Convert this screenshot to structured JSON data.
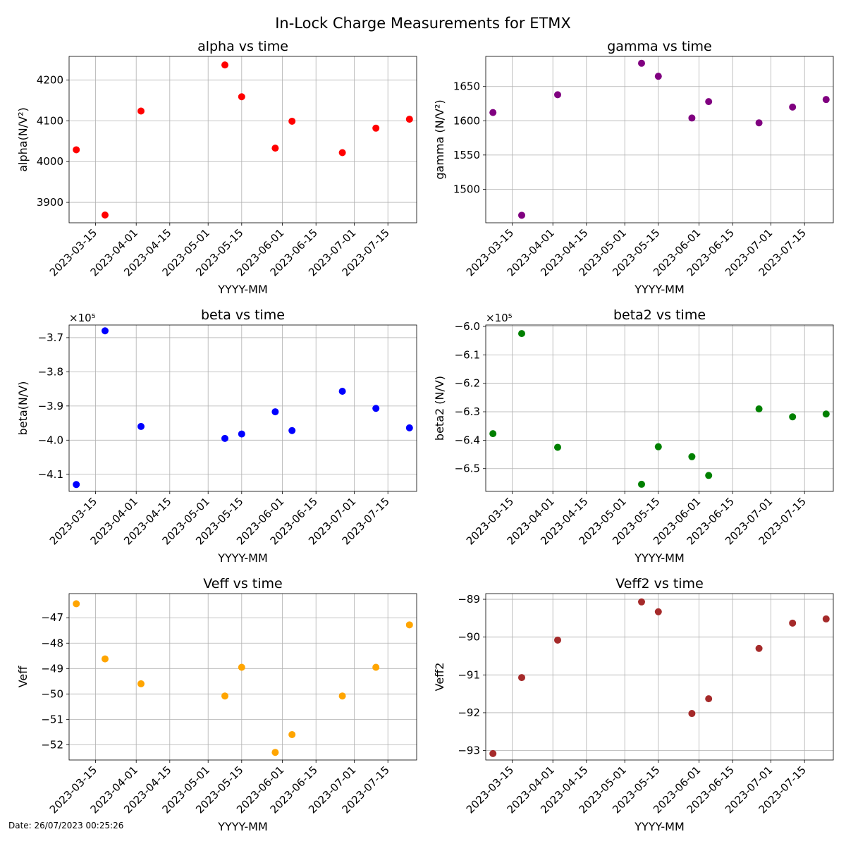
{
  "figure": {
    "title": "In-Lock Charge Measurements for ETMX",
    "footer": "Date: 26/07/2023 00:25:26"
  },
  "chart_data": [
    {
      "type": "scatter",
      "title": "alpha vs time",
      "xlabel": "YYYY-MM",
      "ylabel": "alpha(N/V²)",
      "color": "#ff0000",
      "grid": true,
      "x_ticks": [
        "2023-03-15",
        "2023-04-01",
        "2023-04-15",
        "2023-05-01",
        "2023-05-15",
        "2023-06-01",
        "2023-06-15",
        "2023-07-01",
        "2023-07-15"
      ],
      "xlim": [
        "2023-03-04",
        "2023-07-27"
      ],
      "ylim": [
        3850,
        4258
      ],
      "y_ticks": [
        3900,
        4000,
        4100,
        4200
      ],
      "y_tick_labels": [
        "3900",
        "4000",
        "4100",
        "4200"
      ],
      "x": [
        "2023-03-07",
        "2023-03-19",
        "2023-04-03",
        "2023-05-08",
        "2023-05-15",
        "2023-05-29",
        "2023-06-05",
        "2023-06-26",
        "2023-07-10",
        "2023-07-24"
      ],
      "y": [
        4029,
        3869,
        4124,
        4237,
        4159,
        4033,
        4099,
        4022,
        4082,
        4104
      ]
    },
    {
      "type": "scatter",
      "title": "gamma vs time",
      "xlabel": "YYYY-MM",
      "ylabel": "gamma (N/V²)",
      "color": "#800080",
      "grid": true,
      "x_ticks": [
        "2023-03-15",
        "2023-04-01",
        "2023-04-15",
        "2023-05-01",
        "2023-05-15",
        "2023-06-01",
        "2023-06-15",
        "2023-07-01",
        "2023-07-15"
      ],
      "xlim": [
        "2023-03-04",
        "2023-07-27"
      ],
      "ylim": [
        1451,
        1694
      ],
      "y_ticks": [
        1500,
        1550,
        1600,
        1650
      ],
      "y_tick_labels": [
        "1500",
        "1550",
        "1600",
        "1650"
      ],
      "x": [
        "2023-03-07",
        "2023-03-19",
        "2023-04-03",
        "2023-05-08",
        "2023-05-15",
        "2023-05-29",
        "2023-06-05",
        "2023-06-26",
        "2023-07-10",
        "2023-07-24"
      ],
      "y": [
        1612,
        1462,
        1638,
        1684,
        1665,
        1604,
        1628,
        1597,
        1620,
        1631
      ]
    },
    {
      "type": "scatter",
      "title": "beta vs time",
      "xlabel": "YYYY-MM",
      "ylabel": "beta(N/V)",
      "offset_label": "×10⁵",
      "color": "#0000ff",
      "grid": true,
      "x_ticks": [
        "2023-03-15",
        "2023-04-01",
        "2023-04-15",
        "2023-05-01",
        "2023-05-15",
        "2023-06-01",
        "2023-06-15",
        "2023-07-01",
        "2023-07-15"
      ],
      "xlim": [
        "2023-03-04",
        "2023-07-27"
      ],
      "ylim": [
        -4.15,
        -3.663
      ],
      "y_ticks": [
        -4.1,
        -4.0,
        -3.9,
        -3.8,
        -3.7
      ],
      "y_tick_labels": [
        "−4.1",
        "−4.0",
        "−3.9",
        "−3.8",
        "−3.7"
      ],
      "x": [
        "2023-03-07",
        "2023-03-19",
        "2023-04-03",
        "2023-05-08",
        "2023-05-15",
        "2023-05-29",
        "2023-06-05",
        "2023-06-26",
        "2023-07-10",
        "2023-07-24"
      ],
      "y": [
        -4.13,
        -3.68,
        -3.96,
        -3.995,
        -3.982,
        -3.917,
        -3.972,
        -3.857,
        -3.907,
        -3.964
      ]
    },
    {
      "type": "scatter",
      "title": "beta2 vs time",
      "xlabel": "YYYY-MM",
      "ylabel": "beta2 (N/V)",
      "offset_label": "×10⁵",
      "color": "#008000",
      "grid": true,
      "x_ticks": [
        "2023-03-15",
        "2023-04-01",
        "2023-04-15",
        "2023-05-01",
        "2023-05-15",
        "2023-06-01",
        "2023-06-15",
        "2023-07-01",
        "2023-07-15"
      ],
      "xlim": [
        "2023-03-04",
        "2023-07-27"
      ],
      "ylim": [
        -6.58,
        -5.995
      ],
      "y_ticks": [
        -6.5,
        -6.4,
        -6.3,
        -6.2,
        -6.1,
        -6.0
      ],
      "y_tick_labels": [
        "−6.5",
        "−6.4",
        "−6.3",
        "−6.2",
        "−6.1",
        "−6.0"
      ],
      "x": [
        "2023-03-07",
        "2023-03-19",
        "2023-04-03",
        "2023-05-08",
        "2023-05-15",
        "2023-05-29",
        "2023-06-05",
        "2023-06-26",
        "2023-07-10",
        "2023-07-24"
      ],
      "y": [
        -6.377,
        -6.025,
        -6.425,
        -6.555,
        -6.423,
        -6.458,
        -6.524,
        -6.29,
        -6.318,
        -6.308
      ]
    },
    {
      "type": "scatter",
      "title": "Veff vs time",
      "xlabel": "YYYY-MM",
      "ylabel": "Veff",
      "color": "#ffa500",
      "grid": true,
      "x_ticks": [
        "2023-03-15",
        "2023-04-01",
        "2023-04-15",
        "2023-05-01",
        "2023-05-15",
        "2023-06-01",
        "2023-06-15",
        "2023-07-01",
        "2023-07-15"
      ],
      "xlim": [
        "2023-03-04",
        "2023-07-27"
      ],
      "ylim": [
        -52.6,
        -46.05
      ],
      "y_ticks": [
        -52,
        -51,
        -50,
        -49,
        -48,
        -47
      ],
      "y_tick_labels": [
        "−52",
        "−51",
        "−50",
        "−49",
        "−48",
        "−47"
      ],
      "x": [
        "2023-03-07",
        "2023-03-19",
        "2023-04-03",
        "2023-05-08",
        "2023-05-15",
        "2023-05-29",
        "2023-06-05",
        "2023-06-26",
        "2023-07-10",
        "2023-07-24"
      ],
      "y": [
        -46.45,
        -48.62,
        -49.6,
        -50.08,
        -48.95,
        -52.3,
        -51.6,
        -50.08,
        -48.95,
        -47.28
      ]
    },
    {
      "type": "scatter",
      "title": "Veff2 vs time",
      "xlabel": "YYYY-MM",
      "ylabel": "Veff2",
      "color": "#a52a2a",
      "grid": true,
      "x_ticks": [
        "2023-03-15",
        "2023-04-01",
        "2023-04-15",
        "2023-05-01",
        "2023-05-15",
        "2023-06-01",
        "2023-06-15",
        "2023-07-01",
        "2023-07-15"
      ],
      "xlim": [
        "2023-03-04",
        "2023-07-27"
      ],
      "ylim": [
        -93.25,
        -88.85
      ],
      "y_ticks": [
        -93,
        -92,
        -91,
        -90,
        -89
      ],
      "y_tick_labels": [
        "−93",
        "−92",
        "−91",
        "−90",
        "−89"
      ],
      "x": [
        "2023-03-07",
        "2023-03-19",
        "2023-04-03",
        "2023-05-08",
        "2023-05-15",
        "2023-05-29",
        "2023-06-05",
        "2023-06-26",
        "2023-07-10",
        "2023-07-24"
      ],
      "y": [
        -93.08,
        -91.07,
        -90.08,
        -89.07,
        -89.33,
        -92.02,
        -91.63,
        -90.3,
        -89.63,
        -89.52
      ]
    }
  ]
}
